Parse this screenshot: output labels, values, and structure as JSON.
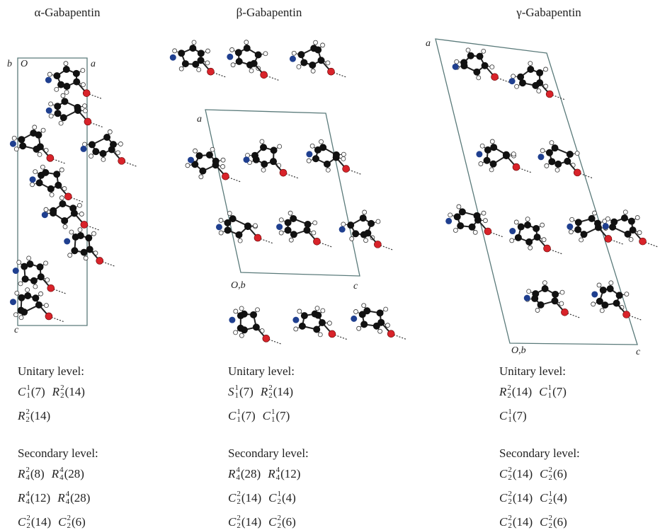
{
  "panels": [
    {
      "title": "α-Gabapentin",
      "cell_labels": [
        "b",
        "O",
        "a",
        "c"
      ],
      "unitary": {
        "heading": "Unitary level:",
        "lines": [
          [
            {
              "symbol": "C",
              "sup": "1",
              "sub": "1",
              "arg": "(7)"
            },
            {
              "symbol": "R",
              "sup": "2",
              "sub": "2",
              "arg": "(14)"
            }
          ],
          [
            {
              "symbol": "R",
              "sup": "2",
              "sub": "2",
              "arg": "(14)"
            }
          ]
        ]
      },
      "secondary": {
        "heading": "Secondary level:",
        "lines": [
          [
            {
              "symbol": "R",
              "sup": "2",
              "sub": "4",
              "arg": "(8)"
            },
            {
              "symbol": "R",
              "sup": "4",
              "sub": "4",
              "arg": "(28)"
            }
          ],
          [
            {
              "symbol": "R",
              "sup": "4",
              "sub": "4",
              "arg": "(12)"
            },
            {
              "symbol": "R",
              "sup": "4",
              "sub": "4",
              "arg": "(28)"
            }
          ],
          [
            {
              "symbol": "C",
              "sup": "2",
              "sub": "2",
              "arg": "(14)"
            },
            {
              "symbol": "C",
              "sup": "2",
              "sub": "2",
              "arg": "(6)"
            }
          ]
        ]
      }
    },
    {
      "title": "β-Gabapentin",
      "cell_labels": [
        "a",
        "O,b",
        "c"
      ],
      "unitary": {
        "heading": "Unitary level:",
        "lines": [
          [
            {
              "symbol": "S",
              "sup": "1",
              "sub": "1",
              "arg": "(7)"
            },
            {
              "symbol": "R",
              "sup": "2",
              "sub": "2",
              "arg": "(14)"
            }
          ],
          [
            {
              "symbol": "C",
              "sup": "1",
              "sub": "1",
              "arg": "(7)"
            },
            {
              "symbol": "C",
              "sup": "1",
              "sub": "1",
              "arg": "(7)"
            }
          ]
        ]
      },
      "secondary": {
        "heading": "Secondary level:",
        "lines": [
          [
            {
              "symbol": "R",
              "sup": "4",
              "sub": "4",
              "arg": "(28)"
            },
            {
              "symbol": "R",
              "sup": "4",
              "sub": "4",
              "arg": "(12)"
            }
          ],
          [
            {
              "symbol": "C",
              "sup": "2",
              "sub": "2",
              "arg": "(14)"
            },
            {
              "symbol": "C",
              "sup": "1",
              "sub": "2",
              "arg": "(4)"
            }
          ],
          [
            {
              "symbol": "C",
              "sup": "2",
              "sub": "2",
              "arg": "(14)"
            },
            {
              "symbol": "C",
              "sup": "2",
              "sub": "2",
              "arg": "(6)"
            }
          ]
        ]
      }
    },
    {
      "title": "γ-Gabapentin",
      "cell_labels": [
        "a",
        "O,b",
        "c"
      ],
      "unitary": {
        "heading": "Unitary level:",
        "lines": [
          [
            {
              "symbol": "R",
              "sup": "2",
              "sub": "2",
              "arg": "(14)"
            },
            {
              "symbol": "C",
              "sup": "1",
              "sub": "1",
              "arg": "(7)"
            }
          ],
          [
            {
              "symbol": "C",
              "sup": "1",
              "sub": "1",
              "arg": "(7)"
            }
          ]
        ]
      },
      "secondary": {
        "heading": "Secondary level:",
        "lines": [
          [
            {
              "symbol": "C",
              "sup": "2",
              "sub": "2",
              "arg": "(14)"
            },
            {
              "symbol": "C",
              "sup": "2",
              "sub": "2",
              "arg": "(6)"
            }
          ],
          [
            {
              "symbol": "C",
              "sup": "2",
              "sub": "2",
              "arg": "(14)"
            },
            {
              "symbol": "C",
              "sup": "1",
              "sub": "2",
              "arg": "(4)"
            }
          ],
          [
            {
              "symbol": "C",
              "sup": "2",
              "sub": "2",
              "arg": "(14)"
            },
            {
              "symbol": "C",
              "sup": "2",
              "sub": "2",
              "arg": "(6)"
            }
          ]
        ]
      }
    }
  ]
}
